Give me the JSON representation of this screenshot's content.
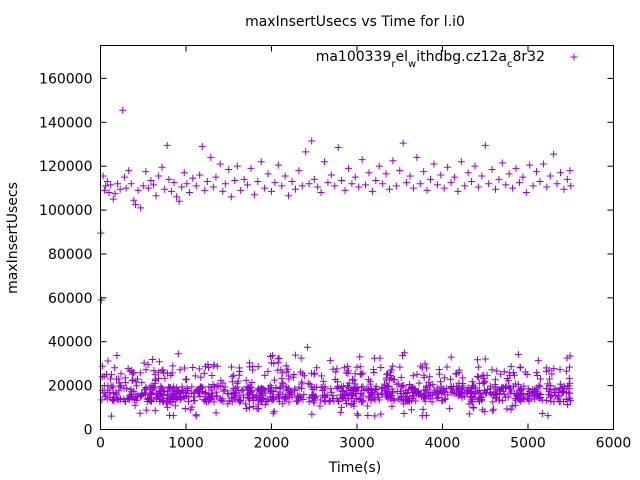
{
  "chart_data": {
    "type": "scatter",
    "title": "maxInsertUsecs vs Time for l.i0",
    "xlabel": "Time(s)",
    "ylabel": "maxInsertUsecs",
    "xlim": [
      0,
      6000
    ],
    "ylim": [
      0,
      175000
    ],
    "xticks": [
      0,
      1000,
      2000,
      3000,
      4000,
      5000,
      6000
    ],
    "yticks": [
      0,
      20000,
      40000,
      60000,
      80000,
      100000,
      120000,
      140000,
      160000
    ],
    "legend": {
      "position": "top-right",
      "label_parts": [
        {
          "text": "ma100339",
          "shift": "none"
        },
        {
          "text": "r",
          "shift": "sub"
        },
        {
          "text": "el",
          "shift": "none"
        },
        {
          "text": "w",
          "shift": "sub"
        },
        {
          "text": "ithdbg.cz12a",
          "shift": "none"
        },
        {
          "text": "c",
          "shift": "sub"
        },
        {
          "text": "8r32",
          "shift": "none"
        }
      ]
    },
    "series": [
      {
        "name": "ma100339_rel_withdbg.cz12a_c8r32",
        "color": "#9400d3",
        "marker": "+",
        "points": [
          [
            5,
            89500
          ],
          [
            10,
            59000
          ],
          [
            20,
            24000
          ],
          [
            30,
            115500
          ],
          [
            45,
            109000
          ],
          [
            60,
            111000
          ],
          [
            80,
            113000
          ],
          [
            100,
            108000
          ],
          [
            120,
            111500
          ],
          [
            150,
            105000
          ],
          [
            170,
            107500
          ],
          [
            200,
            112000
          ],
          [
            230,
            109500
          ],
          [
            260,
            145500
          ],
          [
            280,
            115000
          ],
          [
            300,
            110000
          ],
          [
            330,
            118000
          ],
          [
            360,
            112000
          ],
          [
            390,
            104500
          ],
          [
            410,
            102500
          ],
          [
            440,
            109000
          ],
          [
            470,
            101000
          ],
          [
            500,
            111000
          ],
          [
            530,
            117500
          ],
          [
            560,
            110000
          ],
          [
            590,
            113500
          ],
          [
            620,
            111500
          ],
          [
            650,
            106500
          ],
          [
            680,
            115500
          ],
          [
            720,
            119500
          ],
          [
            750,
            109500
          ],
          [
            780,
            129500
          ],
          [
            800,
            114000
          ],
          [
            830,
            108500
          ],
          [
            860,
            112500
          ],
          [
            890,
            106000
          ],
          [
            920,
            104000
          ],
          [
            950,
            110500
          ],
          [
            980,
            117000
          ],
          [
            1010,
            112000
          ],
          [
            1040,
            108000
          ],
          [
            1080,
            114500
          ],
          [
            1120,
            111000
          ],
          [
            1160,
            116000
          ],
          [
            1190,
            129000
          ],
          [
            1220,
            109000
          ],
          [
            1250,
            113000
          ],
          [
            1290,
            124000
          ],
          [
            1320,
            110500
          ],
          [
            1350,
            115000
          ],
          [
            1400,
            121000
          ],
          [
            1430,
            108500
          ],
          [
            1460,
            112000
          ],
          [
            1500,
            118500
          ],
          [
            1530,
            106000
          ],
          [
            1570,
            113500
          ],
          [
            1600,
            120000
          ],
          [
            1640,
            109000
          ],
          [
            1680,
            114000
          ],
          [
            1720,
            111500
          ],
          [
            1760,
            119000
          ],
          [
            1800,
            107000
          ],
          [
            1840,
            113000
          ],
          [
            1880,
            122000
          ],
          [
            1920,
            110000
          ],
          [
            1960,
            116500
          ],
          [
            2000,
            108500
          ],
          [
            2040,
            112500
          ],
          [
            2080,
            120500
          ],
          [
            2120,
            111000
          ],
          [
            2160,
            115500
          ],
          [
            2200,
            106500
          ],
          [
            2240,
            113000
          ],
          [
            2280,
            109500
          ],
          [
            2320,
            118000
          ],
          [
            2360,
            111000
          ],
          [
            2400,
            126500
          ],
          [
            2440,
            112000
          ],
          [
            2470,
            131500
          ],
          [
            2500,
            114000
          ],
          [
            2540,
            110500
          ],
          [
            2580,
            108000
          ],
          [
            2620,
            122000
          ],
          [
            2660,
            112500
          ],
          [
            2700,
            116000
          ],
          [
            2740,
            111000
          ],
          [
            2780,
            128500
          ],
          [
            2820,
            113500
          ],
          [
            2860,
            109000
          ],
          [
            2900,
            119000
          ],
          [
            2940,
            112000
          ],
          [
            2980,
            115000
          ],
          [
            3020,
            110500
          ],
          [
            3060,
            123000
          ],
          [
            3100,
            111500
          ],
          [
            3140,
            117000
          ],
          [
            3180,
            108500
          ],
          [
            3220,
            113500
          ],
          [
            3260,
            120000
          ],
          [
            3300,
            112000
          ],
          [
            3340,
            116500
          ],
          [
            3380,
            109500
          ],
          [
            3420,
            122500
          ],
          [
            3460,
            111000
          ],
          [
            3500,
            118000
          ],
          [
            3540,
            130500
          ],
          [
            3580,
            112500
          ],
          [
            3620,
            115500
          ],
          [
            3660,
            110000
          ],
          [
            3700,
            124000
          ],
          [
            3740,
            112000
          ],
          [
            3780,
            117500
          ],
          [
            3820,
            109000
          ],
          [
            3860,
            114000
          ],
          [
            3900,
            121000
          ],
          [
            3940,
            111500
          ],
          [
            3980,
            116000
          ],
          [
            4020,
            110000
          ],
          [
            4060,
            119500
          ],
          [
            4100,
            112500
          ],
          [
            4140,
            115000
          ],
          [
            4180,
            108500
          ],
          [
            4220,
            122000
          ],
          [
            4260,
            111000
          ],
          [
            4300,
            117000
          ],
          [
            4340,
            113000
          ],
          [
            4380,
            120000
          ],
          [
            4420,
            110500
          ],
          [
            4460,
            115500
          ],
          [
            4500,
            129500
          ],
          [
            4540,
            112000
          ],
          [
            4580,
            118500
          ],
          [
            4620,
            109500
          ],
          [
            4660,
            114000
          ],
          [
            4700,
            121500
          ],
          [
            4740,
            111500
          ],
          [
            4780,
            116500
          ],
          [
            4820,
            110000
          ],
          [
            4860,
            119000
          ],
          [
            4900,
            112500
          ],
          [
            4940,
            115000
          ],
          [
            4980,
            108000
          ],
          [
            5020,
            120500
          ],
          [
            5060,
            111000
          ],
          [
            5100,
            117500
          ],
          [
            5140,
            113000
          ],
          [
            5180,
            121000
          ],
          [
            5220,
            110500
          ],
          [
            5260,
            115500
          ],
          [
            5300,
            125500
          ],
          [
            5340,
            112000
          ],
          [
            5380,
            117000
          ],
          [
            5420,
            109500
          ],
          [
            5460,
            114000
          ],
          [
            5490,
            118000
          ],
          [
            5500,
            111000
          ]
        ]
      }
    ]
  }
}
